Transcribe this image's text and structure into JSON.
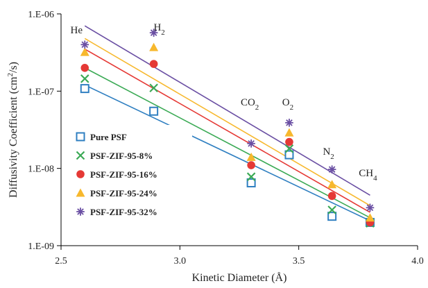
{
  "chart_data": {
    "type": "scatter",
    "title": "",
    "xlabel": "Kinetic Diameter (Å)",
    "ylabel": "Diffusivity Coefficient (cm2/s)",
    "y_scale": "log",
    "xlim": [
      2.5,
      4.0
    ],
    "ylim": [
      1e-09,
      1e-06
    ],
    "x_tick_labels": [
      "2.5",
      "3.0",
      "3.5",
      "4.0"
    ],
    "y_tick_labels": [
      "1.E-06",
      "1.E-07",
      "1.E-08",
      "1.E-09"
    ],
    "legend_position": "left",
    "gas_labels": [
      {
        "base": "He",
        "sub": "",
        "x": 2.6
      },
      {
        "base": "H",
        "sub": "2",
        "x": 2.89
      },
      {
        "base": "CO",
        "sub": "2",
        "x": 3.3
      },
      {
        "base": "O",
        "sub": "2",
        "x": 3.46
      },
      {
        "base": "N",
        "sub": "2",
        "x": 3.64
      },
      {
        "base": "CH",
        "sub": "4",
        "x": 3.8
      }
    ],
    "x": [
      2.6,
      2.89,
      3.3,
      3.46,
      3.64,
      3.8
    ],
    "series": [
      {
        "name": "Pure PSF",
        "color": "#2F7FC1",
        "marker": "square-open",
        "values": [
          1.08e-07,
          5.5e-08,
          6.5e-09,
          1.5e-08,
          2.4e-09,
          2e-09
        ],
        "trend": [
          1.2e-07,
          2.1e-09
        ]
      },
      {
        "name": "PSF-ZIF-95-8%",
        "color": "#3BAA55",
        "marker": "x",
        "values": [
          1.45e-07,
          1.1e-07,
          7.8e-09,
          1.8e-08,
          2.9e-09,
          1.95e-09
        ],
        "trend": [
          2e-07,
          2.3e-09
        ]
      },
      {
        "name": "PSF-ZIF-95-16%",
        "color": "#E53935",
        "marker": "circle",
        "values": [
          2e-07,
          2.25e-07,
          1.1e-08,
          2.2e-08,
          4.4e-09,
          2e-09
        ],
        "trend": [
          3.5e-07,
          2.7e-09
        ]
      },
      {
        "name": "PSF-ZIF-95-24%",
        "color": "#F7B82D",
        "marker": "triangle",
        "values": [
          3.2e-07,
          3.7e-07,
          1.4e-08,
          2.9e-08,
          6.2e-09,
          2.3e-09
        ],
        "trend": [
          4.8e-07,
          3.3e-09
        ]
      },
      {
        "name": "PSF-ZIF-95-32%",
        "color": "#6A4FA3",
        "marker": "asterisk",
        "values": [
          4e-07,
          5.7e-07,
          2.1e-08,
          3.9e-08,
          9.7e-09,
          3.1e-09
        ],
        "trend": [
          7e-07,
          4.5e-09
        ]
      }
    ]
  }
}
